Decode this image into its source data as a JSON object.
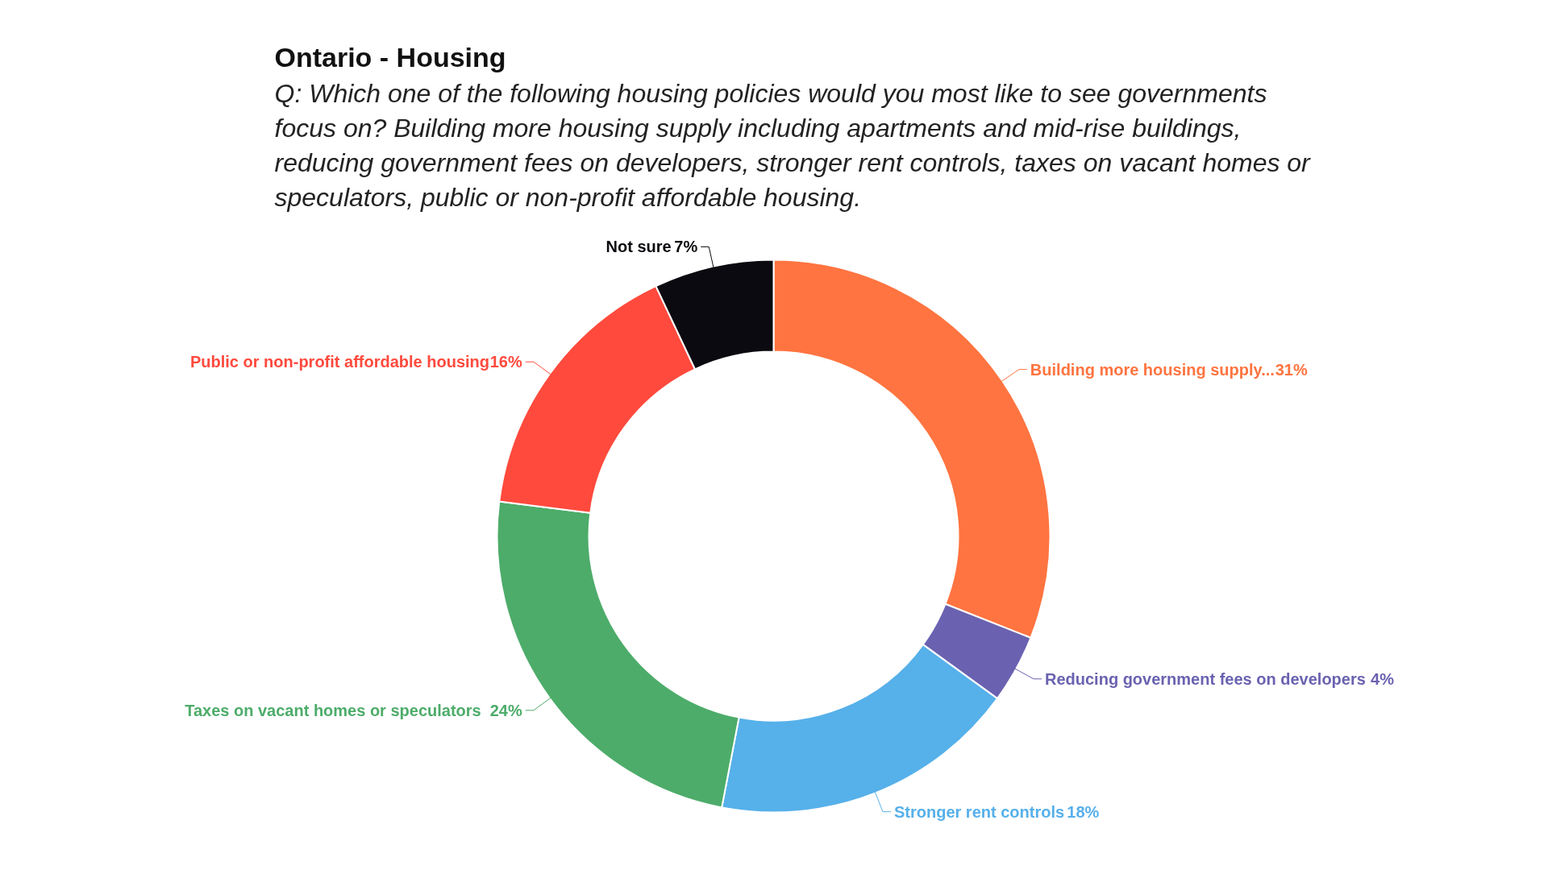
{
  "chart_data": {
    "type": "donut",
    "title": "Ontario - Housing",
    "subtitle": "Q: Which one of the following housing policies would you most like to see governments focus on? Building more housing supply including apartments and mid-rise buildings, reducing government fees on developers, stronger rent controls, taxes on vacant homes or speculators, public or non-profit affordable housing.",
    "categories": [
      "Building more housing supply...",
      "Reducing government fees on developers",
      "Stronger rent controls",
      "Taxes on vacant homes or speculators",
      "Public or non-profit affordable housing",
      "Not sure"
    ],
    "values": [
      31,
      4,
      18,
      24,
      16,
      7
    ],
    "colors": [
      "#ff7440",
      "#6a62b0",
      "#56b0ea",
      "#4dac6a",
      "#ff4a3d",
      "#0a0a10"
    ],
    "value_labels": [
      "31%",
      "4%",
      "18%",
      "24%",
      "16%",
      "7%"
    ]
  }
}
